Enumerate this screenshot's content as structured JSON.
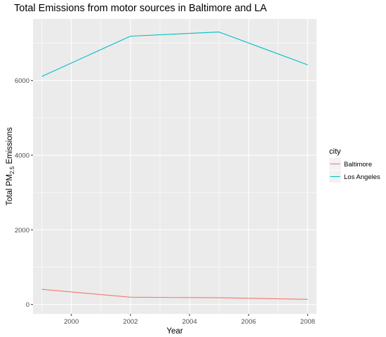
{
  "chart_data": {
    "type": "line",
    "title": "Total Emissions from motor sources in Baltimore and LA",
    "xlabel": "Year",
    "ylabel_prefix": "Total PM",
    "ylabel_sub": "2.5",
    "ylabel_suffix": " Emissions",
    "x": [
      1999,
      2002,
      2005,
      2008
    ],
    "xlim": [
      1998.7,
      2008.3
    ],
    "ylim": [
      -250,
      7650
    ],
    "x_ticks": [
      2000,
      2002,
      2004,
      2006,
      2008
    ],
    "x_tick_labels": [
      "2000",
      "2002",
      "2004",
      "2006",
      "2008"
    ],
    "y_ticks": [
      0,
      2000,
      4000,
      6000
    ],
    "y_tick_labels": [
      "0",
      "2000",
      "4000",
      "6000"
    ],
    "x_minor": [
      1999,
      2001,
      2003,
      2005,
      2007
    ],
    "y_minor": [
      1000,
      3000,
      5000,
      7000
    ],
    "grid": true,
    "legend": {
      "title": "city",
      "placement": "right"
    },
    "series": [
      {
        "name": "Baltimore",
        "color": "#F8766D",
        "values": [
          406.0,
          196.0,
          181.0,
          139.0
        ]
      },
      {
        "name": "Los Angeles",
        "color": "#00BFC4",
        "values": [
          6110.0,
          7190.0,
          7300.0,
          6420.0
        ]
      }
    ]
  }
}
